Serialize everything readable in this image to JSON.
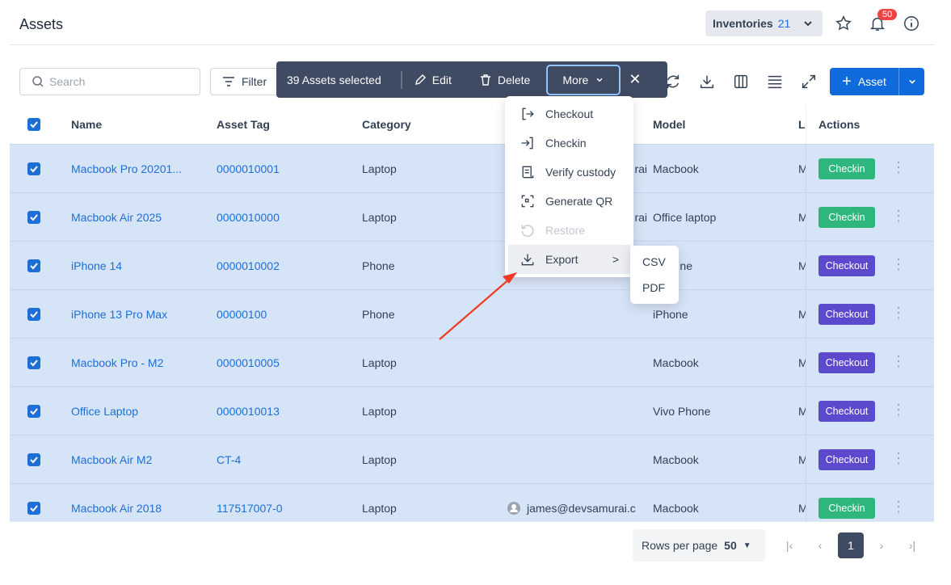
{
  "header": {
    "title": "Assets",
    "inventories_label": "Inventories",
    "inventories_count": "21",
    "notification_count": "50"
  },
  "toolbar": {
    "search_placeholder": "Search",
    "filter_label": "Filter",
    "add_label": "Asset"
  },
  "bulk": {
    "selected_text": "39 Assets selected",
    "edit": "Edit",
    "delete": "Delete",
    "more": "More"
  },
  "menu": {
    "items": [
      {
        "label": "Checkout",
        "icon": "checkout-icon"
      },
      {
        "label": "Checkin",
        "icon": "checkin-icon"
      },
      {
        "label": "Verify custody",
        "icon": "verify-icon"
      },
      {
        "label": "Generate QR",
        "icon": "qr-icon"
      },
      {
        "label": "Restore",
        "icon": "restore-icon",
        "disabled": true
      },
      {
        "label": "Export",
        "icon": "download-icon"
      }
    ],
    "export_sub": [
      "CSV",
      "PDF"
    ]
  },
  "table": {
    "columns": [
      "Name",
      "Asset Tag",
      "Category",
      "Model",
      "L",
      "Actions"
    ],
    "rows": [
      {
        "name": "Macbook Pro 20201...",
        "tag": "0000010001",
        "category": "Laptop",
        "assignee": "james@devsamurai",
        "model": "Macbook",
        "last": "M",
        "action": "Checkin"
      },
      {
        "name": "Macbook Air 2025",
        "tag": "0000010000",
        "category": "Laptop",
        "assignee": "james@devsamurai",
        "model": "Office laptop",
        "last": "M",
        "action": "Checkin"
      },
      {
        "name": "iPhone 14",
        "tag": "0000010002",
        "category": "Phone",
        "assignee": "",
        "model": "iPhone",
        "last": "M",
        "action": "Checkout"
      },
      {
        "name": "iPhone 13 Pro Max",
        "tag": "00000100",
        "category": "Phone",
        "assignee": "",
        "model": "iPhone",
        "last": "M",
        "action": "Checkout"
      },
      {
        "name": "Macbook Pro - M2",
        "tag": "0000010005",
        "category": "Laptop",
        "assignee": "",
        "model": "Macbook",
        "last": "M",
        "action": "Checkout"
      },
      {
        "name": "Office Laptop",
        "tag": "0000010013",
        "category": "Laptop",
        "assignee": "",
        "model": "Vivo Phone",
        "last": "M",
        "action": "Checkout"
      },
      {
        "name": "Macbook Air M2",
        "tag": "CT-4",
        "category": "Laptop",
        "assignee": "",
        "model": "Macbook",
        "last": "M",
        "action": "Checkout"
      },
      {
        "name": "Macbook Air 2018",
        "tag": "117517007-0",
        "category": "Laptop",
        "assignee": "james@devsamurai.c",
        "model": "Macbook",
        "last": "M",
        "action": "Checkin"
      }
    ]
  },
  "pagination": {
    "rows_per_page_label": "Rows per page",
    "rows_per_page": "50",
    "current_page": "1"
  },
  "colors": {
    "primary": "#0f6bdc",
    "checkin": "#2fb67c",
    "checkout": "#5b4bcc",
    "bulk_bar": "#3f4a63",
    "row_selected": "#d6e4f8",
    "annotation_arrow": "#f03a24"
  }
}
